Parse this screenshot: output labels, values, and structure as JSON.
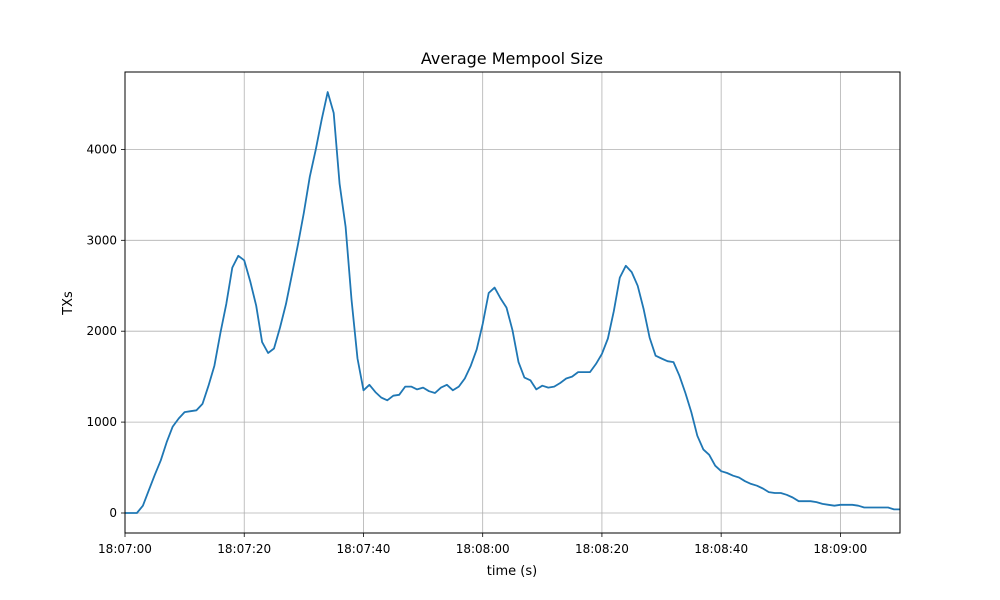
{
  "chart_data": {
    "type": "line",
    "title": "Average Mempool Size",
    "xlabel": "time (s)",
    "ylabel": "TXs",
    "xlim_seconds": [
      0,
      130
    ],
    "ylim": [
      -230,
      4850
    ],
    "x_tick_labels": [
      "18:07:00",
      "18:07:20",
      "18:07:40",
      "18:08:00",
      "18:08:20",
      "18:08:40",
      "18:09:00"
    ],
    "x_tick_seconds": [
      0,
      20,
      40,
      60,
      80,
      100,
      120
    ],
    "y_ticks": [
      0,
      1000,
      2000,
      3000,
      4000
    ],
    "grid": true,
    "line_color": "#1f77b4",
    "series": [
      {
        "name": "Average Mempool Size",
        "x_seconds": [
          0,
          1,
          2,
          3,
          4,
          5,
          6,
          7,
          8,
          9,
          10,
          11,
          12,
          13,
          14,
          15,
          16,
          17,
          18,
          19,
          20,
          21,
          22,
          23,
          24,
          25,
          26,
          27,
          28,
          29,
          30,
          31,
          32,
          33,
          34,
          35,
          36,
          37,
          38,
          39,
          40,
          41,
          42,
          43,
          44,
          45,
          46,
          47,
          48,
          49,
          50,
          51,
          52,
          53,
          54,
          55,
          56,
          57,
          58,
          59,
          60,
          61,
          62,
          63,
          64,
          65,
          66,
          67,
          68,
          69,
          70,
          71,
          72,
          73,
          74,
          75,
          76,
          77,
          78,
          79,
          80,
          81,
          82,
          83,
          84,
          85,
          86,
          87,
          88,
          89,
          90,
          91,
          92,
          93,
          94,
          95,
          96,
          97,
          98,
          99,
          100,
          101,
          102,
          103,
          104,
          105,
          106,
          107,
          108,
          109,
          110,
          111,
          112,
          113,
          114,
          115,
          116,
          117,
          118,
          119,
          120,
          121,
          122,
          123,
          124,
          125,
          126,
          127,
          128,
          129,
          130
        ],
        "values": [
          0,
          0,
          0,
          80,
          250,
          420,
          580,
          780,
          950,
          1040,
          1110,
          1120,
          1130,
          1200,
          1400,
          1620,
          1980,
          2300,
          2700,
          2830,
          2780,
          2550,
          2280,
          1880,
          1760,
          1810,
          2040,
          2300,
          2620,
          2950,
          3300,
          3700,
          4000,
          4330,
          4630,
          4400,
          3620,
          3150,
          2350,
          1700,
          1350,
          1410,
          1330,
          1270,
          1240,
          1290,
          1300,
          1390,
          1390,
          1360,
          1380,
          1340,
          1320,
          1380,
          1410,
          1350,
          1390,
          1480,
          1620,
          1800,
          2080,
          2420,
          2480,
          2360,
          2260,
          2010,
          1660,
          1490,
          1460,
          1360,
          1400,
          1380,
          1390,
          1430,
          1480,
          1500,
          1550,
          1550,
          1550,
          1640,
          1750,
          1920,
          2220,
          2590,
          2720,
          2650,
          2500,
          2240,
          1930,
          1730,
          1700,
          1670,
          1660,
          1510,
          1320,
          1110,
          850,
          700,
          640,
          520,
          460,
          440,
          410,
          390,
          350,
          320,
          300,
          270,
          230,
          220,
          220,
          200,
          170,
          130,
          130,
          130,
          120,
          100,
          90,
          80,
          90,
          90,
          90,
          80,
          60,
          60,
          60,
          60,
          60,
          40,
          40
        ]
      }
    ]
  }
}
